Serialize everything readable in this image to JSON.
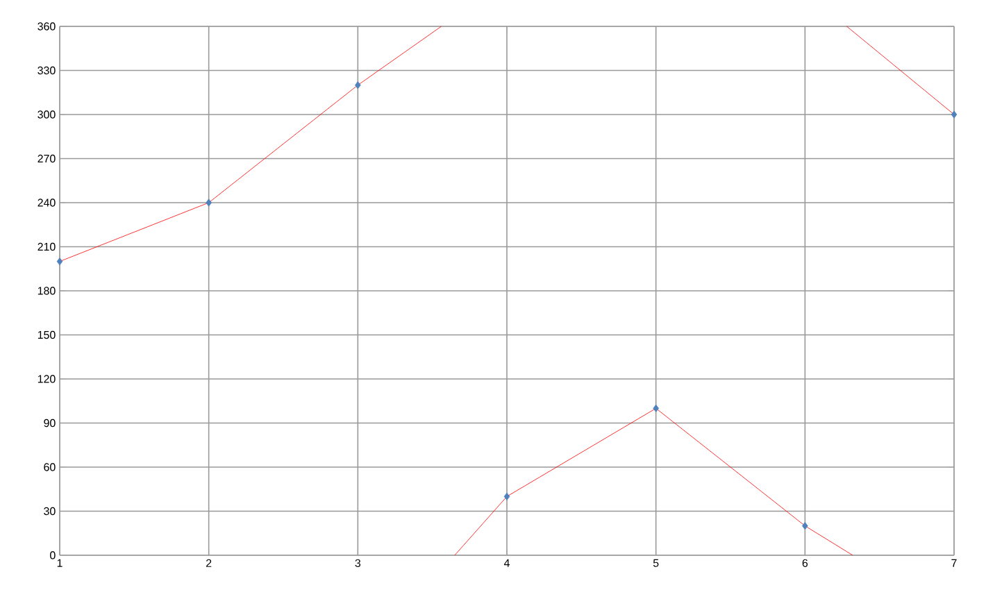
{
  "chart_data": {
    "type": "line",
    "xlim": [
      1,
      7
    ],
    "xticks": [
      1,
      2,
      3,
      4,
      5,
      6,
      7
    ],
    "ylim": [
      0,
      360
    ],
    "yticks": [
      0,
      30,
      60,
      90,
      120,
      150,
      180,
      210,
      240,
      270,
      300,
      330,
      360
    ],
    "grid": true,
    "line_style": "solid",
    "series": [
      {
        "color": "#ff0000",
        "x": [
          1,
          2,
          3,
          3.56
        ],
        "values": [
          200,
          240,
          320,
          360
        ]
      },
      {
        "color": "#ff0000",
        "x": [
          3.65,
          4,
          5,
          6,
          6.32
        ],
        "values": [
          0,
          40,
          100,
          20,
          0
        ]
      },
      {
        "color": "#ff0000",
        "x": [
          6.28,
          7
        ],
        "values": [
          360,
          300
        ]
      },
      {
        "type": "scatter",
        "color": "#4f81bd",
        "marker": "diamond",
        "x": [
          1,
          2,
          3,
          4,
          5,
          6,
          7
        ],
        "values": [
          200,
          240,
          320,
          40,
          100,
          20,
          300
        ]
      }
    ]
  }
}
